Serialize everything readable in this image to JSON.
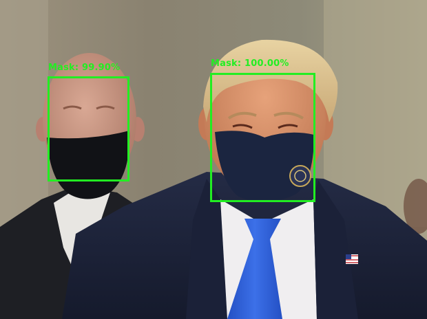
{
  "detections": [
    {
      "label": "Mask: 99.90%",
      "class": "Mask",
      "confidence": "99.90%"
    },
    {
      "label": "Mask: 100.00%",
      "class": "Mask",
      "confidence": "100.00%"
    }
  ],
  "colors": {
    "box": "#22ee22",
    "background_wall": "#8e8470",
    "suit": "#1c2238",
    "tie": "#2f5fd6",
    "mask_dark": "#111216",
    "mask_navy": "#1b2540"
  }
}
